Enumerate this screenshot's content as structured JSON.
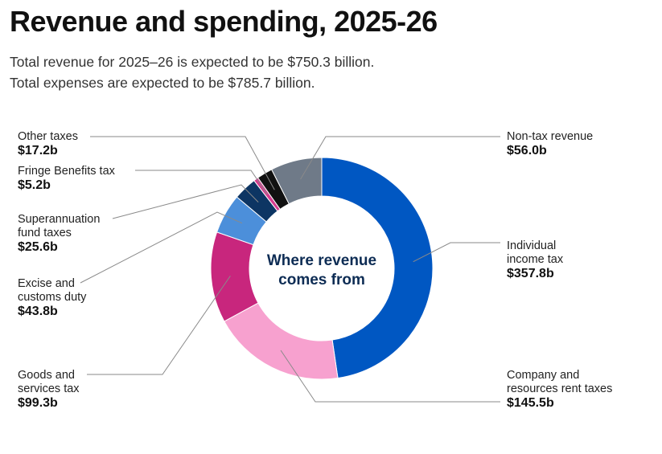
{
  "title": "Revenue and spending, 2025-26",
  "subtitle_lines": [
    "Total revenue for 2025–26 is expected to be $750.3 billion.",
    "Total expenses are expected to be $785.7 billion."
  ],
  "chart_data": {
    "type": "pie",
    "center_label_lines": [
      "Where revenue",
      "comes from"
    ],
    "unit": "$ billion",
    "slices": [
      {
        "label_lines": [
          "Individual",
          "income tax"
        ],
        "value_text": "$357.8b",
        "value": 357.8,
        "color": "#0057c2"
      },
      {
        "label_lines": [
          "Company and",
          "resources rent taxes"
        ],
        "value_text": "$145.5b",
        "value": 145.5,
        "color": "#f7a1cf"
      },
      {
        "label_lines": [
          "Goods and",
          "services tax"
        ],
        "value_text": "$99.3b",
        "value": 99.3,
        "color": "#c8267d"
      },
      {
        "label_lines": [
          "Excise and",
          "customs duty"
        ],
        "value_text": "$43.8b",
        "value": 43.8,
        "color": "#4c8fda"
      },
      {
        "label_lines": [
          "Superannuation",
          "fund taxes"
        ],
        "value_text": "$25.6b",
        "value": 25.6,
        "color": "#0d3563"
      },
      {
        "label_lines": [
          "Fringe Benefits tax"
        ],
        "value_text": "$5.2b",
        "value": 5.2,
        "color": "#d63b8f"
      },
      {
        "label_lines": [
          "Other taxes"
        ],
        "value_text": "$17.2b",
        "value": 17.2,
        "color": "#111111"
      },
      {
        "label_lines": [
          "Non-tax revenue"
        ],
        "value_text": "$56.0b",
        "value": 56.0,
        "color": "#6f7a88"
      }
    ]
  }
}
